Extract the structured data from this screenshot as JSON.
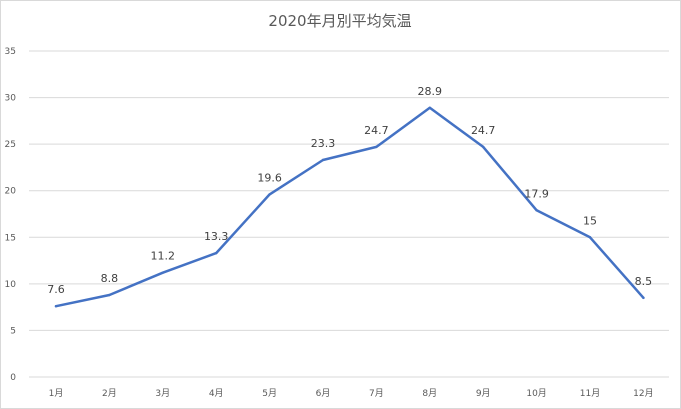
{
  "chart_data": {
    "type": "line",
    "title": "2020年月別平均気温",
    "categories": [
      "1月",
      "2月",
      "3月",
      "4月",
      "5月",
      "6月",
      "7月",
      "8月",
      "9月",
      "10月",
      "11月",
      "12月"
    ],
    "series": [
      {
        "values": [
          7.6,
          8.8,
          11.2,
          13.3,
          19.6,
          23.3,
          24.7,
          28.9,
          24.7,
          17.9,
          15,
          8.5
        ],
        "color": "#4472c4"
      }
    ],
    "data_labels": [
      "7.6",
      "8.8",
      "11.2",
      "13.3",
      "19.6",
      "23.3",
      "24.7",
      "28.9",
      "24.7",
      "17.9",
      "15",
      "8.5"
    ],
    "ylim": [
      0,
      35
    ],
    "yticks": [
      0,
      5,
      10,
      15,
      20,
      25,
      30,
      35
    ],
    "ytick_labels": [
      "0",
      "5",
      "10",
      "15",
      "20",
      "25",
      "30",
      "35"
    ],
    "grid": true,
    "legend": false
  }
}
